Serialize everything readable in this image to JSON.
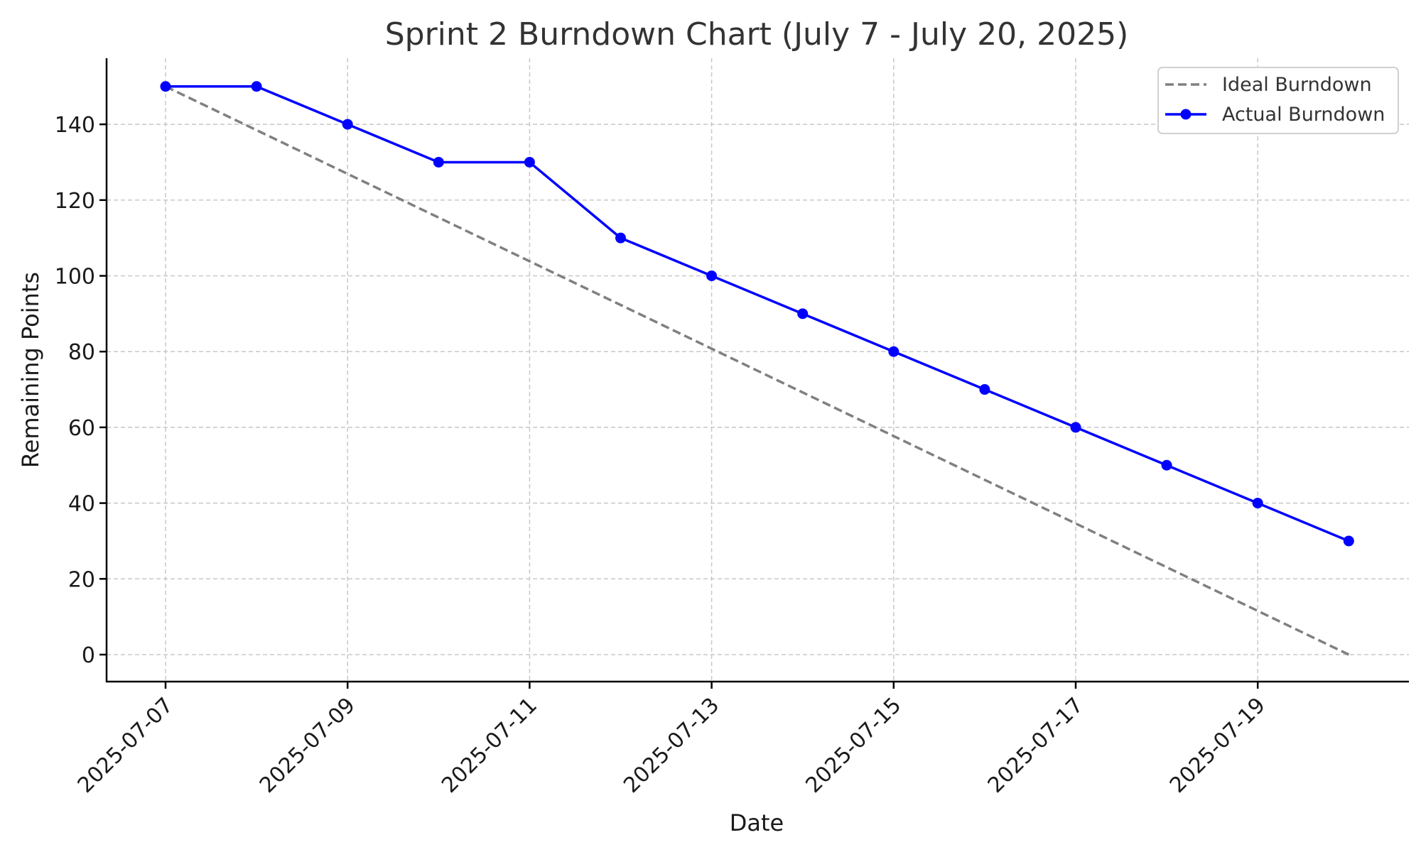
{
  "chart_data": {
    "type": "line",
    "title": "Sprint 2 Burndown Chart (July 7 - July 20, 2025)",
    "xlabel": "Date",
    "ylabel": "Remaining Points",
    "x": [
      "2025-07-07",
      "2025-07-08",
      "2025-07-09",
      "2025-07-10",
      "2025-07-11",
      "2025-07-12",
      "2025-07-13",
      "2025-07-14",
      "2025-07-15",
      "2025-07-16",
      "2025-07-17",
      "2025-07-18",
      "2025-07-19",
      "2025-07-20"
    ],
    "x_tick_labels": [
      "2025-07-07",
      "2025-07-09",
      "2025-07-11",
      "2025-07-13",
      "2025-07-15",
      "2025-07-17",
      "2025-07-19"
    ],
    "y_ticks": [
      0,
      20,
      40,
      60,
      80,
      100,
      120,
      140
    ],
    "ylim": [
      -7.5,
      157.5
    ],
    "grid": true,
    "legend_position": "top-right",
    "series": [
      {
        "name": "Ideal Burndown",
        "style": "dashed",
        "color": "#808080",
        "values": [
          150,
          138.46,
          126.92,
          115.38,
          103.85,
          92.31,
          80.77,
          69.23,
          57.69,
          46.15,
          34.62,
          23.08,
          11.54,
          0
        ]
      },
      {
        "name": "Actual Burndown",
        "style": "solid-marker",
        "color": "#0000ff",
        "values": [
          150,
          150,
          140,
          130,
          130,
          110,
          100,
          90,
          80,
          70,
          60,
          50,
          40,
          30
        ]
      }
    ]
  }
}
